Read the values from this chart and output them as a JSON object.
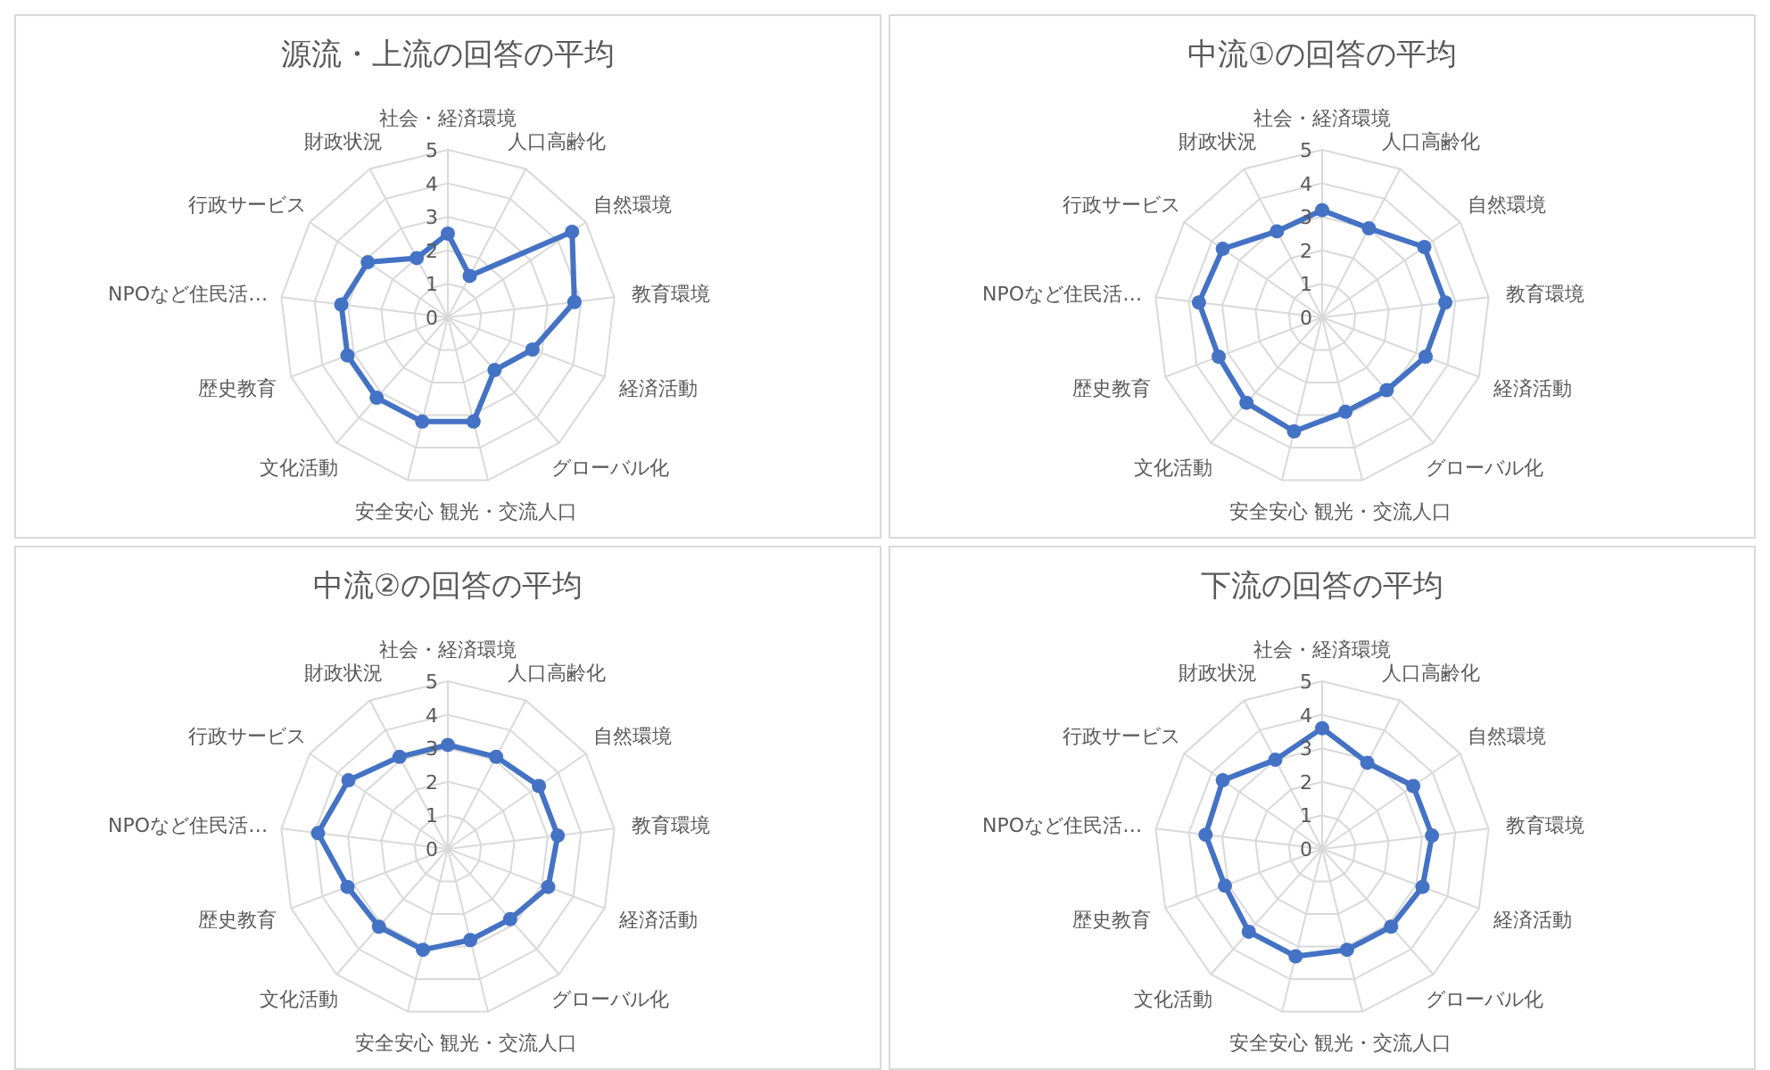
{
  "chart_data": [
    {
      "type": "radar",
      "title": "源流・上流の回答の平均",
      "categories": [
        "社会・経済環境",
        "人口高齢化",
        "自然環境",
        "教育環境",
        "経済活動",
        "グローバル化",
        "観光・交流人口",
        "安全安心",
        "文化活動",
        "歴史教育",
        "NPOなど住民活…",
        "行政サービス",
        "財政状況"
      ],
      "series": [
        {
          "color": "#4472c4",
          "values": [
            2.5,
            1.4,
            4.5,
            3.8,
            2.7,
            2.1,
            3.2,
            3.2,
            3.2,
            3.2,
            3.2,
            2.9,
            2.0
          ]
        }
      ],
      "ylim": [
        0,
        5
      ],
      "yticks": [
        0,
        1,
        2,
        3,
        4,
        5
      ],
      "grid": true,
      "marker": "circle",
      "legend": false
    },
    {
      "type": "radar",
      "title": "中流①の回答の平均",
      "categories": [
        "社会・経済環境",
        "人口高齢化",
        "自然環境",
        "教育環境",
        "経済活動",
        "グローバル化",
        "観光・交流人口",
        "安全安心",
        "文化活動",
        "歴史教育",
        "NPOなど住民活…",
        "行政サービス",
        "財政状況"
      ],
      "series": [
        {
          "color": "#4472c4",
          "values": [
            3.2,
            3.0,
            3.7,
            3.7,
            3.3,
            2.9,
            2.9,
            3.5,
            3.4,
            3.3,
            3.7,
            3.6,
            2.9
          ]
        }
      ],
      "ylim": [
        0,
        5
      ],
      "yticks": [
        0,
        1,
        2,
        3,
        4,
        5
      ],
      "grid": true,
      "marker": "circle",
      "legend": false
    },
    {
      "type": "radar",
      "title": "中流②の回答の平均",
      "categories": [
        "社会・経済環境",
        "人口高齢化",
        "自然環境",
        "教育環境",
        "経済活動",
        "グローバル化",
        "観光・交流人口",
        "安全安心",
        "文化活動",
        "歴史教育",
        "NPOなど住民活…",
        "行政サービス",
        "財政状況"
      ],
      "series": [
        {
          "color": "#4472c4",
          "values": [
            3.1,
            3.1,
            3.3,
            3.3,
            3.2,
            2.8,
            2.8,
            3.1,
            3.1,
            3.2,
            3.9,
            3.6,
            3.1
          ]
        }
      ],
      "ylim": [
        0,
        5
      ],
      "yticks": [
        0,
        1,
        2,
        3,
        4,
        5
      ],
      "grid": true,
      "marker": "circle",
      "legend": false
    },
    {
      "type": "radar",
      "title": "下流の回答の平均",
      "categories": [
        "社会・経済環境",
        "人口高齢化",
        "自然環境",
        "教育環境",
        "経済活動",
        "グローバル化",
        "観光・交流人口",
        "安全安心",
        "文化活動",
        "歴史教育",
        "NPOなど住民活…",
        "行政サービス",
        "財政状況"
      ],
      "series": [
        {
          "color": "#4472c4",
          "values": [
            3.6,
            2.9,
            3.3,
            3.3,
            3.2,
            3.1,
            3.1,
            3.3,
            3.3,
            3.1,
            3.5,
            3.6,
            3.0
          ]
        }
      ],
      "ylim": [
        0,
        5
      ],
      "yticks": [
        0,
        1,
        2,
        3,
        4,
        5
      ],
      "grid": true,
      "marker": "circle",
      "legend": false
    }
  ]
}
